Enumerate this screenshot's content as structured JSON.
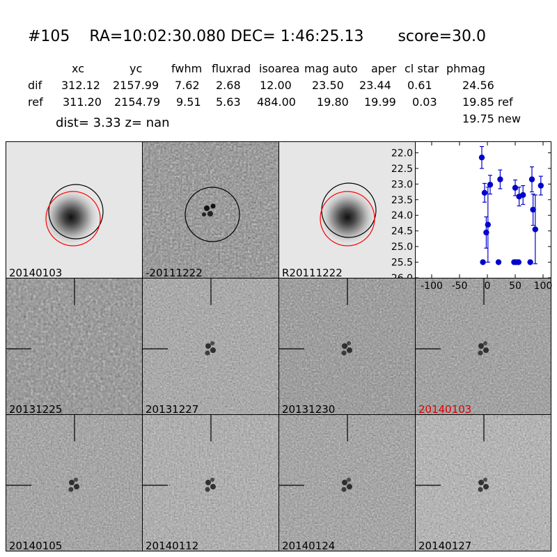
{
  "title": {
    "id": "#105",
    "coords": "RA=10:02:30.080 DEC= 1:46:25.13",
    "score": "score=30.0"
  },
  "table": {
    "headers": [
      "xc",
      "yc",
      "fwhm",
      "fluxrad",
      "isoarea",
      "mag auto",
      "aper",
      "cl star",
      "phmag"
    ],
    "rows": [
      {
        "label": "dif",
        "values": [
          "312.12",
          "2157.99",
          "7.62",
          "2.68",
          "12.00",
          "23.50",
          "23.44",
          "0.61",
          "24.56"
        ]
      },
      {
        "label": "ref",
        "values": [
          "311.20",
          "2154.79",
          "9.51",
          "5.63",
          "484.00",
          "19.80",
          "19.99",
          "0.03",
          "19.85 ref"
        ]
      }
    ],
    "extra": "19.75 new"
  },
  "dist_line": "dist=  3.33       z=   nan",
  "stamps_top": [
    {
      "label": "20140103",
      "style": "smooth"
    },
    {
      "label": "-20111222",
      "style": "noisy"
    },
    {
      "label": "R20111222",
      "style": "smooth"
    }
  ],
  "stamps_grid": [
    {
      "label": "20131225",
      "highlight": false
    },
    {
      "label": "20131227",
      "highlight": false
    },
    {
      "label": "20131230",
      "highlight": false
    },
    {
      "label": "20140103",
      "highlight": true
    },
    {
      "label": "20140105",
      "highlight": false
    },
    {
      "label": "20140112",
      "highlight": false
    },
    {
      "label": "20140124",
      "highlight": false
    },
    {
      "label": "20140127",
      "highlight": false
    }
  ],
  "colors": {
    "highlight_label": "#e00000",
    "point": "#0000cc",
    "ref_circle": "#ff0000"
  },
  "chart_data": {
    "type": "scatter",
    "xlim": [
      -130,
      115
    ],
    "ylim": [
      26.0,
      21.7
    ],
    "y_inverted": true,
    "xticks": [
      "-100",
      "-50",
      "0",
      "50",
      "100"
    ],
    "xtick_values": [
      -100,
      -50,
      0,
      50,
      100
    ],
    "yticks": [
      "22.0",
      "22.5",
      "23.0",
      "23.5",
      "24.0",
      "24.5",
      "25.0",
      "25.5",
      "26.0"
    ],
    "ytick_values": [
      22.0,
      22.5,
      23.0,
      23.5,
      24.0,
      24.5,
      25.0,
      25.5,
      26.0
    ],
    "points": [
      {
        "x": -10,
        "y": 22.15,
        "err": 0.35
      },
      {
        "x": -8,
        "y": 25.5,
        "err": 0
      },
      {
        "x": -5,
        "y": 23.28,
        "err": 0.3
      },
      {
        "x": -2,
        "y": 24.55,
        "err": 0.5
      },
      {
        "x": 1,
        "y": 24.3,
        "err": 1.2
      },
      {
        "x": 5,
        "y": 23.02,
        "err": 0.3
      },
      {
        "x": 20,
        "y": 25.5,
        "err": 0
      },
      {
        "x": 23,
        "y": 22.85,
        "err": 0.3
      },
      {
        "x": 48,
        "y": 25.5,
        "err": 0
      },
      {
        "x": 50,
        "y": 23.12,
        "err": 0.25
      },
      {
        "x": 52,
        "y": 25.5,
        "err": 0
      },
      {
        "x": 56,
        "y": 25.5,
        "err": 0
      },
      {
        "x": 57,
        "y": 23.4,
        "err": 0.3
      },
      {
        "x": 64,
        "y": 23.35,
        "err": 0.3
      },
      {
        "x": 77,
        "y": 25.5,
        "err": 0
      },
      {
        "x": 80,
        "y": 22.85,
        "err": 0.4
      },
      {
        "x": 82,
        "y": 23.82,
        "err": 0.5
      },
      {
        "x": 86,
        "y": 24.45,
        "err": 1.1
      },
      {
        "x": 96,
        "y": 23.05,
        "err": 0.3
      }
    ]
  }
}
